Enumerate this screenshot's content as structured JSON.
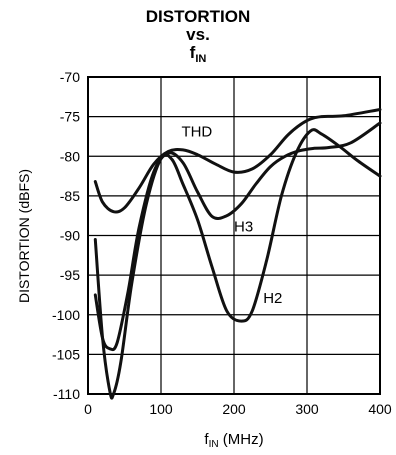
{
  "chart_data": {
    "type": "line",
    "title": [
      "DISTORTION",
      "vs.",
      "f",
      "IN"
    ],
    "xlabel_main": "f",
    "xlabel_sub": "IN",
    "xlabel_rest": " (MHz)",
    "ylabel": "DISTORTION (dBFS)",
    "xlim": [
      0,
      400
    ],
    "ylim": [
      -110,
      -70
    ],
    "xticks": [
      0,
      100,
      200,
      300,
      400
    ],
    "yticks": [
      -70,
      -75,
      -80,
      -85,
      -90,
      -95,
      -100,
      -105,
      -110
    ],
    "grid": true,
    "series": [
      {
        "name": "THD",
        "x": [
          10,
          20,
          35,
          50,
          70,
          90,
          110,
          130,
          150,
          175,
          200,
          225,
          250,
          275,
          300,
          320,
          350,
          400
        ],
        "y": [
          -83.2,
          -85.8,
          -87,
          -86.5,
          -84,
          -81,
          -79.4,
          -79.2,
          -79.8,
          -81,
          -82,
          -81.6,
          -79.8,
          -77.2,
          -75.5,
          -75,
          -74.9,
          -74.1
        ]
      },
      {
        "name": "H3",
        "x": [
          10,
          20,
          30,
          40,
          55,
          70,
          90,
          110,
          130,
          150,
          170,
          190,
          210,
          230,
          250,
          270,
          290,
          310,
          330,
          360,
          400
        ],
        "y": [
          -97.5,
          -103,
          -104.3,
          -103.5,
          -97,
          -89,
          -82,
          -79.6,
          -80.8,
          -84.5,
          -87.6,
          -87.5,
          -86,
          -83.5,
          -81.3,
          -80,
          -79.3,
          -79,
          -78.9,
          -78.3,
          -75.8
        ]
      },
      {
        "name": "H2",
        "x": [
          10,
          20,
          30,
          35,
          45,
          60,
          80,
          100,
          115,
          130,
          150,
          170,
          190,
          210,
          225,
          245,
          265,
          285,
          305,
          320,
          345,
          370,
          400
        ],
        "y": [
          -90.5,
          -103,
          -109.7,
          -110,
          -106,
          -96,
          -86,
          -80.3,
          -80.4,
          -83.5,
          -88,
          -94,
          -99.5,
          -100.8,
          -99.5,
          -93,
          -85,
          -79.6,
          -76.8,
          -77.2,
          -78.8,
          -80.6,
          -82.5
        ]
      }
    ],
    "annotations": [
      {
        "text": "THD",
        "x": 128,
        "y": -77.5
      },
      {
        "text": "H3",
        "x": 200,
        "y": -89.5
      },
      {
        "text": "H2",
        "x": 240,
        "y": -98.5
      }
    ]
  }
}
